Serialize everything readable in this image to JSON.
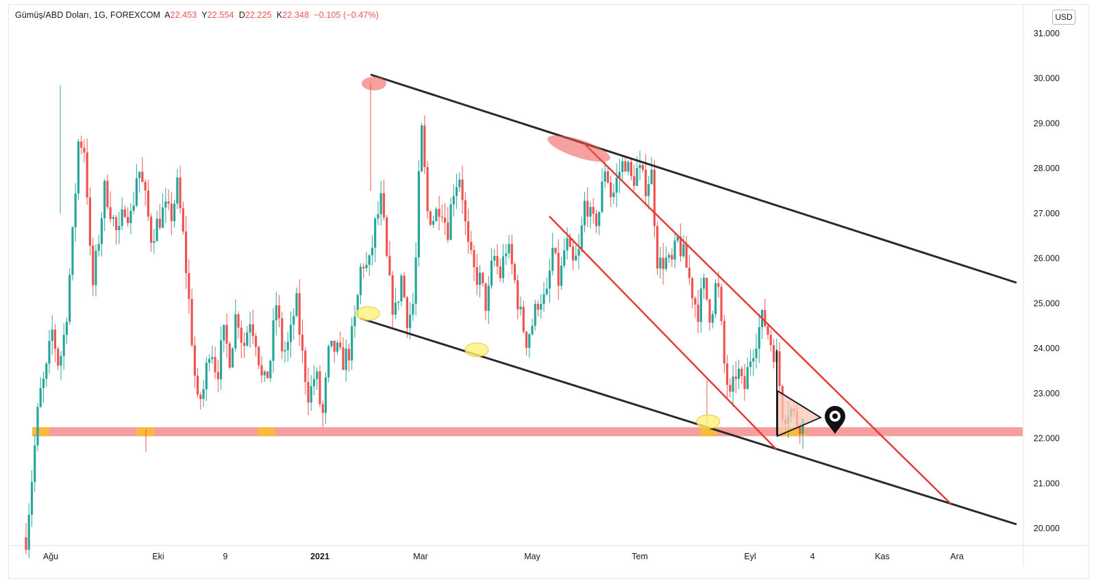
{
  "legend": {
    "symbol": "Gümüş/ABD Doları, 1G, FOREXCOM",
    "open_key": "A",
    "open": "22.453",
    "high_key": "Y",
    "high": "22.554",
    "low_key": "D",
    "low": "22.225",
    "close_key": "K",
    "close": "22.348",
    "change": "−0.105 (−0.47%)"
  },
  "currency": "USD",
  "colors": {
    "up": "#26a69a",
    "down": "#ef5350",
    "support_band": "#f6989b",
    "support_touch": "#fbc02d",
    "channel": "#2a2a2a",
    "inner_channel": "#e53935"
  },
  "chart_data": {
    "type": "candlestick",
    "symbol": "Gümüş/ABD Doları",
    "interval": "1G",
    "exchange": "FOREXCOM",
    "ylim": [
      19.6,
      31.6
    ],
    "y_ticks": [
      "20.000",
      "21.000",
      "22.000",
      "23.000",
      "24.000",
      "25.000",
      "26.000",
      "27.000",
      "28.000",
      "29.000",
      "30.000",
      "31.000"
    ],
    "x_ticks": [
      {
        "label": "Ağu",
        "bold": false
      },
      {
        "label": "Eki",
        "bold": false
      },
      {
        "label": "9",
        "bold": false
      },
      {
        "label": "2021",
        "bold": true
      },
      {
        "label": "Mar",
        "bold": false
      },
      {
        "label": "May",
        "bold": false
      },
      {
        "label": "Tem",
        "bold": false
      },
      {
        "label": "Eyl",
        "bold": false
      },
      {
        "label": "4",
        "bold": false
      },
      {
        "label": "Kas",
        "bold": false
      },
      {
        "label": "Ara",
        "bold": false
      }
    ],
    "close_path": [
      19.8,
      21.3,
      22.9,
      23.4,
      24.4,
      23.6,
      24.5,
      26.3,
      28.7,
      28.4,
      25.2,
      26.4,
      27.6,
      27.0,
      26.4,
      27.2,
      26.9,
      28.1,
      27.4,
      26.5,
      26.8,
      27.1,
      26.9,
      27.6,
      26.3,
      24.6,
      22.7,
      23.1,
      24.2,
      23.4,
      24.3,
      23.8,
      24.9,
      24.0,
      24.7,
      24.2,
      23.1,
      23.6,
      25.0,
      23.9,
      24.1,
      25.1,
      23.8,
      22.9,
      23.5,
      22.4,
      23.9,
      24.0,
      23.7,
      23.9,
      24.6,
      26.0,
      25.7,
      26.7,
      27.3,
      25.6,
      24.7,
      25.6,
      24.6,
      25.1,
      29.0,
      27.0,
      26.9,
      27.3,
      26.6,
      27.6,
      27.9,
      26.3,
      25.7,
      25.5,
      24.9,
      26.1,
      25.6,
      26.3,
      25.7,
      24.8,
      24.2,
      24.6,
      25.2,
      25.0,
      26.2,
      25.4,
      26.4,
      25.8,
      26.1,
      27.4,
      26.7,
      27.0,
      28.1,
      27.3,
      27.9,
      28.2,
      27.7,
      28.0,
      27.6,
      27.9,
      25.8,
      26.0,
      25.8,
      26.4,
      26.0,
      25.4,
      24.8,
      25.4,
      24.7,
      25.6,
      23.7,
      22.8,
      23.6,
      23.0,
      23.8,
      24.3,
      24.7,
      24.2,
      23.8,
      22.5,
      22.7,
      22.4,
      22.35
    ],
    "annotations": {
      "support_zone": [
        22.05,
        22.25
      ],
      "descending_channel_upper": [
        {
          "date": "Oca 2021",
          "y": 30.1
        },
        {
          "date": "Ara",
          "y": 25.5
        }
      ],
      "descending_channel_lower": [
        {
          "date": "Oca 2021",
          "y": 24.65
        },
        {
          "date": "Ara",
          "y": 20.1
        }
      ],
      "inner_channel_upper": [
        {
          "date": "Haz",
          "y": 28.5
        },
        {
          "date": "Ara",
          "y": 20.55
        }
      ],
      "inner_channel_lower": [
        {
          "date": "May",
          "y": 26.95
        },
        {
          "date": "Eyl",
          "y": 21.75
        }
      ]
    }
  }
}
